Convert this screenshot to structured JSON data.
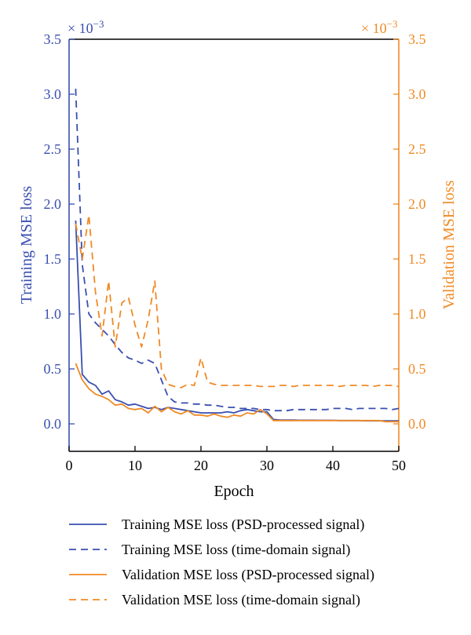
{
  "chart_data": {
    "type": "line",
    "xlabel": "Epoch",
    "ylabel_left": "Training MSE loss",
    "ylabel_right": "Validation MSE loss",
    "left_multiplier": "× 10",
    "left_multiplier_exp": "−3",
    "right_multiplier": "× 10",
    "right_multiplier_exp": "−3",
    "xlim": [
      0,
      50
    ],
    "ylim_left": [
      -0.25,
      3.5
    ],
    "ylim_right": [
      -0.25,
      3.5
    ],
    "x_ticks": [
      0,
      10,
      20,
      30,
      40,
      50
    ],
    "x_tick_labels": [
      "0",
      "10",
      "20",
      "30",
      "40",
      "50"
    ],
    "y_ticks": [
      0,
      0.5,
      1.0,
      1.5,
      2.0,
      2.5,
      3.0,
      3.5
    ],
    "y_tick_labels_left": [
      "0.0",
      "0.5",
      "1.0",
      "1.5",
      "2.0",
      "2.5",
      "3.0",
      "3.5"
    ],
    "y_tick_labels_right": [
      "0.0",
      "0.5",
      "1.0",
      "1.5",
      "2.0",
      "2.5",
      "3.0",
      "3.5"
    ],
    "grid": false,
    "legend_position": "bottom",
    "colors": {
      "training": "#3a4fb0",
      "validation": "#f08a24",
      "frame": "#000000"
    },
    "series": [
      {
        "name": "Training MSE loss (PSD-processed signal)",
        "axis": "left",
        "color": "#3a4fb0",
        "dash": "solid",
        "x": [
          1,
          2,
          3,
          4,
          5,
          6,
          7,
          8,
          9,
          10,
          11,
          12,
          13,
          14,
          15,
          16,
          17,
          18,
          19,
          20,
          21,
          22,
          23,
          24,
          25,
          26,
          27,
          28,
          29,
          30,
          31,
          32,
          33,
          34,
          35,
          36,
          37,
          38,
          39,
          40,
          41,
          42,
          43,
          44,
          45,
          46,
          47,
          48,
          49,
          50
        ],
        "y": [
          1.85,
          0.45,
          0.38,
          0.35,
          0.27,
          0.3,
          0.22,
          0.2,
          0.17,
          0.18,
          0.16,
          0.14,
          0.15,
          0.13,
          0.15,
          0.14,
          0.13,
          0.12,
          0.11,
          0.1,
          0.1,
          0.1,
          0.1,
          0.11,
          0.1,
          0.12,
          0.13,
          0.12,
          0.11,
          0.11,
          0.04,
          0.035,
          0.035,
          0.035,
          0.033,
          0.033,
          0.033,
          0.032,
          0.032,
          0.032,
          0.03,
          0.03,
          0.03,
          0.03,
          0.028,
          0.028,
          0.028,
          0.027,
          0.027,
          0.027
        ]
      },
      {
        "name": "Training MSE loss (time-domain signal)",
        "axis": "left",
        "color": "#3a4fb0",
        "dash": "dashed",
        "x": [
          1,
          2,
          3,
          4,
          5,
          6,
          7,
          8,
          9,
          10,
          11,
          12,
          13,
          14,
          15,
          16,
          17,
          18,
          19,
          20,
          21,
          22,
          23,
          24,
          25,
          26,
          27,
          28,
          29,
          30,
          31,
          32,
          33,
          34,
          35,
          36,
          37,
          38,
          39,
          40,
          41,
          42,
          43,
          44,
          45,
          46,
          47,
          48,
          49,
          50
        ],
        "y": [
          3.05,
          1.45,
          1.0,
          0.92,
          0.86,
          0.8,
          0.72,
          0.65,
          0.6,
          0.58,
          0.55,
          0.58,
          0.55,
          0.4,
          0.25,
          0.2,
          0.19,
          0.19,
          0.18,
          0.18,
          0.17,
          0.17,
          0.16,
          0.15,
          0.15,
          0.14,
          0.14,
          0.14,
          0.13,
          0.13,
          0.12,
          0.12,
          0.12,
          0.13,
          0.13,
          0.13,
          0.13,
          0.13,
          0.13,
          0.14,
          0.14,
          0.14,
          0.13,
          0.14,
          0.14,
          0.14,
          0.14,
          0.14,
          0.13,
          0.14
        ]
      },
      {
        "name": "Validation MSE loss (PSD-processed signal)",
        "axis": "right",
        "color": "#f08a24",
        "dash": "solid",
        "x": [
          1,
          2,
          3,
          4,
          5,
          6,
          7,
          8,
          9,
          10,
          11,
          12,
          13,
          14,
          15,
          16,
          17,
          18,
          19,
          20,
          21,
          22,
          23,
          24,
          25,
          26,
          27,
          28,
          29,
          30,
          31,
          32,
          33,
          34,
          35,
          36,
          37,
          38,
          39,
          40,
          41,
          42,
          43,
          44,
          45,
          46,
          47,
          48,
          49,
          50
        ],
        "y": [
          0.55,
          0.4,
          0.32,
          0.27,
          0.25,
          0.22,
          0.17,
          0.18,
          0.14,
          0.13,
          0.14,
          0.1,
          0.16,
          0.11,
          0.15,
          0.11,
          0.09,
          0.12,
          0.08,
          0.08,
          0.07,
          0.09,
          0.07,
          0.06,
          0.08,
          0.07,
          0.1,
          0.09,
          0.13,
          0.09,
          0.03,
          0.03,
          0.03,
          0.03,
          0.03,
          0.03,
          0.03,
          0.03,
          0.03,
          0.03,
          0.03,
          0.03,
          0.03,
          0.03,
          0.03,
          0.03,
          0.03,
          0.02,
          0.02,
          0.02
        ]
      },
      {
        "name": "Validation MSE loss (time-domain signal)",
        "axis": "right",
        "color": "#f08a24",
        "dash": "dashed",
        "x": [
          1,
          2,
          3,
          4,
          5,
          6,
          7,
          8,
          9,
          10,
          11,
          12,
          13,
          14,
          15,
          16,
          17,
          18,
          19,
          20,
          21,
          22,
          23,
          24,
          25,
          26,
          27,
          28,
          29,
          30,
          31,
          32,
          33,
          34,
          35,
          36,
          37,
          38,
          39,
          40,
          41,
          42,
          43,
          44,
          45,
          46,
          47,
          48,
          49,
          50
        ],
        "y": [
          1.82,
          1.5,
          1.9,
          1.2,
          0.8,
          1.3,
          0.7,
          1.1,
          1.15,
          0.9,
          0.7,
          0.95,
          1.3,
          0.5,
          0.36,
          0.34,
          0.33,
          0.36,
          0.35,
          0.6,
          0.38,
          0.36,
          0.35,
          0.35,
          0.35,
          0.35,
          0.35,
          0.35,
          0.34,
          0.34,
          0.34,
          0.35,
          0.35,
          0.34,
          0.35,
          0.35,
          0.35,
          0.35,
          0.35,
          0.35,
          0.34,
          0.35,
          0.35,
          0.35,
          0.35,
          0.34,
          0.35,
          0.35,
          0.35,
          0.34
        ]
      }
    ]
  }
}
